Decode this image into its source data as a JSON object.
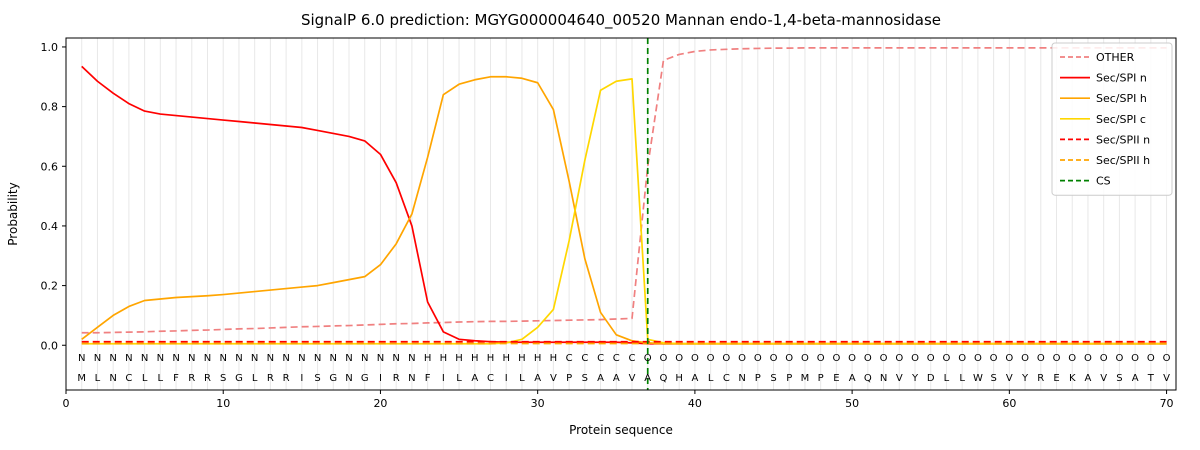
{
  "chart_data": {
    "type": "line",
    "title": "SignalP 6.0 prediction: MGYG000004640_00520 Mannan endo-1,4-beta-mannosidase",
    "xlabel": "Protein sequence",
    "ylabel": "Probability",
    "xlim": [
      0,
      70.6
    ],
    "ylim": [
      -0.15,
      1.03
    ],
    "xticks": [
      0,
      10,
      20,
      30,
      40,
      50,
      60,
      70
    ],
    "yticks": [
      0.0,
      0.2,
      0.4,
      0.6,
      0.8,
      1.0
    ],
    "grid": {
      "vertical_per_residue": true,
      "color": "#e8e8e8"
    },
    "legend_position": "upper right",
    "sequence": "MLNCLLFRRSGLRRISGNGIRNFILACILAVPSAAVAQHALCNPSPMPEAQNVYDLLWSVYREKAVSATV",
    "region_labels": "NNNNNNNNNNNNNNNNNNNNNNHHHHHHHHHCCCCCOOOOOOOOOOOOOOOOOOOOOOOOOOOOOOOOOO",
    "region_colors": {
      "N": "#ff0000",
      "H": "#ffa500",
      "C": "#ffd700",
      "O": "#8c8c8c"
    },
    "series": [
      {
        "name": "OTHER",
        "color": "#f08080",
        "style": "dashed",
        "values": [
          0.042,
          0.042,
          0.043,
          0.044,
          0.045,
          0.047,
          0.048,
          0.05,
          0.051,
          0.053,
          0.055,
          0.056,
          0.058,
          0.06,
          0.062,
          0.063,
          0.065,
          0.066,
          0.068,
          0.07,
          0.072,
          0.073,
          0.075,
          0.076,
          0.078,
          0.079,
          0.08,
          0.08,
          0.081,
          0.082,
          0.083,
          0.084,
          0.085,
          0.086,
          0.088,
          0.09,
          0.6,
          0.955,
          0.975,
          0.985,
          0.99,
          0.992,
          0.994,
          0.995,
          0.996,
          0.996,
          0.997,
          0.997,
          0.997,
          0.997,
          0.997,
          0.997,
          0.997,
          0.997,
          0.997,
          0.997,
          0.997,
          0.997,
          0.997,
          0.997,
          0.997,
          0.997,
          0.997,
          0.997,
          0.997,
          0.997,
          0.997,
          0.997,
          0.997,
          0.997
        ]
      },
      {
        "name": "Sec/SPI n",
        "color": "#ff0000",
        "style": "solid",
        "values": [
          0.935,
          0.885,
          0.845,
          0.81,
          0.785,
          0.775,
          0.77,
          0.765,
          0.76,
          0.755,
          0.75,
          0.745,
          0.74,
          0.735,
          0.73,
          0.72,
          0.71,
          0.7,
          0.685,
          0.64,
          0.545,
          0.4,
          0.145,
          0.045,
          0.02,
          0.015,
          0.012,
          0.01,
          0.01,
          0.01,
          0.01,
          0.01,
          0.01,
          0.01,
          0.01,
          0.008,
          0.005,
          0.005,
          0.005,
          0.005,
          0.005,
          0.005,
          0.005,
          0.005,
          0.005,
          0.005,
          0.005,
          0.005,
          0.005,
          0.005,
          0.005,
          0.005,
          0.005,
          0.005,
          0.005,
          0.005,
          0.005,
          0.005,
          0.005,
          0.005,
          0.005,
          0.005,
          0.005,
          0.005,
          0.005,
          0.005,
          0.005,
          0.005,
          0.005,
          0.005
        ]
      },
      {
        "name": "Sec/SPI h",
        "color": "#ffa500",
        "style": "solid",
        "values": [
          0.02,
          0.06,
          0.1,
          0.13,
          0.15,
          0.155,
          0.16,
          0.163,
          0.166,
          0.17,
          0.175,
          0.18,
          0.185,
          0.19,
          0.195,
          0.2,
          0.21,
          0.22,
          0.23,
          0.27,
          0.34,
          0.44,
          0.63,
          0.84,
          0.875,
          0.89,
          0.9,
          0.9,
          0.895,
          0.88,
          0.79,
          0.55,
          0.29,
          0.11,
          0.035,
          0.015,
          0.008,
          0.005,
          0.005,
          0.005,
          0.005,
          0.005,
          0.005,
          0.005,
          0.005,
          0.005,
          0.005,
          0.005,
          0.005,
          0.005,
          0.005,
          0.005,
          0.005,
          0.005,
          0.005,
          0.005,
          0.005,
          0.005,
          0.005,
          0.005,
          0.005,
          0.005,
          0.005,
          0.005,
          0.005,
          0.005,
          0.005,
          0.005,
          0.005,
          0.005
        ]
      },
      {
        "name": "Sec/SPI c",
        "color": "#ffd700",
        "style": "solid",
        "values": [
          0.005,
          0.005,
          0.005,
          0.005,
          0.005,
          0.005,
          0.005,
          0.005,
          0.005,
          0.005,
          0.005,
          0.005,
          0.005,
          0.005,
          0.005,
          0.005,
          0.005,
          0.005,
          0.005,
          0.005,
          0.005,
          0.005,
          0.005,
          0.005,
          0.005,
          0.005,
          0.005,
          0.008,
          0.02,
          0.06,
          0.12,
          0.35,
          0.62,
          0.855,
          0.885,
          0.893,
          0.02,
          0.008,
          0.005,
          0.005,
          0.005,
          0.005,
          0.005,
          0.005,
          0.005,
          0.005,
          0.005,
          0.005,
          0.005,
          0.005,
          0.005,
          0.005,
          0.005,
          0.005,
          0.005,
          0.005,
          0.005,
          0.005,
          0.005,
          0.005,
          0.005,
          0.005,
          0.005,
          0.005,
          0.005,
          0.005,
          0.005,
          0.005,
          0.005,
          0.005
        ]
      },
      {
        "name": "Sec/SPII n",
        "color": "#ff0000",
        "style": "dashed",
        "values": [
          0.012,
          0.012,
          0.012,
          0.012,
          0.012,
          0.012,
          0.012,
          0.012,
          0.012,
          0.012,
          0.012,
          0.012,
          0.012,
          0.012,
          0.012,
          0.012,
          0.012,
          0.012,
          0.012,
          0.012,
          0.012,
          0.012,
          0.012,
          0.012,
          0.012,
          0.012,
          0.012,
          0.012,
          0.012,
          0.012,
          0.012,
          0.012,
          0.012,
          0.012,
          0.012,
          0.012,
          0.012,
          0.012,
          0.012,
          0.012,
          0.012,
          0.012,
          0.012,
          0.012,
          0.012,
          0.012,
          0.012,
          0.012,
          0.012,
          0.012,
          0.012,
          0.012,
          0.012,
          0.012,
          0.012,
          0.012,
          0.012,
          0.012,
          0.012,
          0.012,
          0.012,
          0.012,
          0.012,
          0.012,
          0.012,
          0.012,
          0.012,
          0.012,
          0.012,
          0.012
        ]
      },
      {
        "name": "Sec/SPII h",
        "color": "#ffa500",
        "style": "dashed",
        "values": [
          0.006,
          0.006,
          0.006,
          0.006,
          0.006,
          0.006,
          0.006,
          0.006,
          0.006,
          0.006,
          0.006,
          0.006,
          0.006,
          0.006,
          0.006,
          0.006,
          0.006,
          0.006,
          0.006,
          0.006,
          0.006,
          0.006,
          0.006,
          0.006,
          0.006,
          0.006,
          0.006,
          0.006,
          0.006,
          0.006,
          0.006,
          0.006,
          0.006,
          0.006,
          0.006,
          0.006,
          0.006,
          0.006,
          0.006,
          0.006,
          0.006,
          0.006,
          0.006,
          0.006,
          0.006,
          0.006,
          0.006,
          0.006,
          0.006,
          0.006,
          0.006,
          0.006,
          0.006,
          0.006,
          0.006,
          0.006,
          0.006,
          0.006,
          0.006,
          0.006,
          0.006,
          0.006,
          0.006,
          0.006,
          0.006,
          0.006,
          0.006,
          0.006,
          0.006,
          0.006
        ]
      }
    ],
    "cleavage_site": {
      "label": "CS",
      "position": 37,
      "color": "#008000",
      "style": "dashed"
    }
  }
}
